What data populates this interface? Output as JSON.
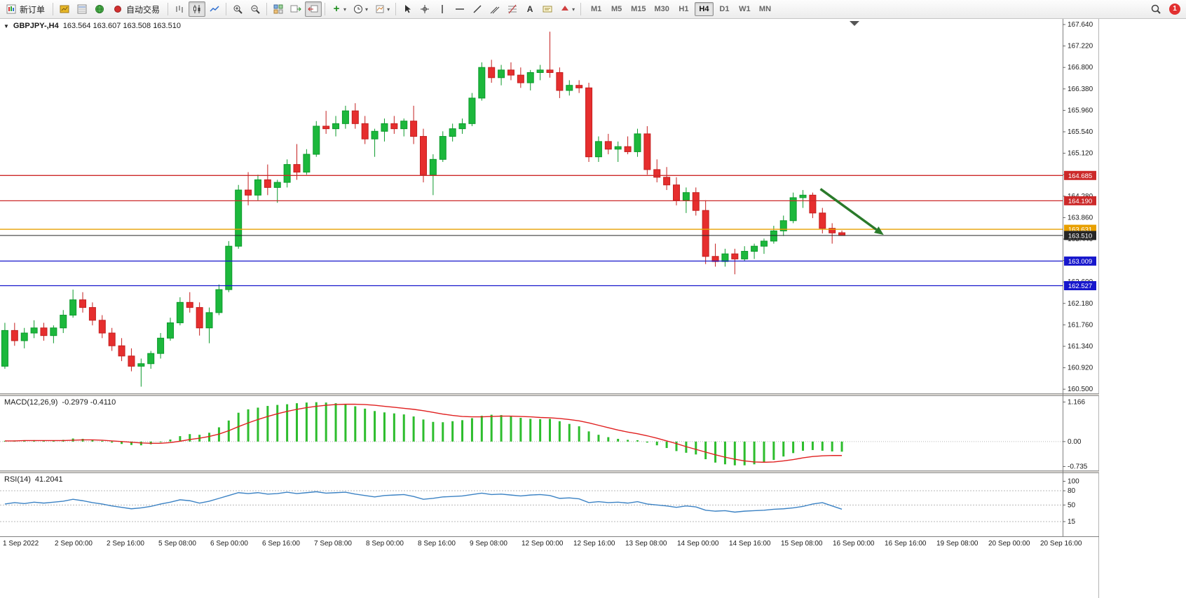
{
  "toolbar": {
    "new_order": {
      "label": "新订单"
    },
    "autotrade": {
      "label": "自动交易"
    },
    "timeframes": [
      {
        "label": "M1",
        "active": false
      },
      {
        "label": "M5",
        "active": false
      },
      {
        "label": "M15",
        "active": false
      },
      {
        "label": "M30",
        "active": false
      },
      {
        "label": "H1",
        "active": false
      },
      {
        "label": "H4",
        "active": true
      },
      {
        "label": "D1",
        "active": false
      },
      {
        "label": "W1",
        "active": false
      },
      {
        "label": "MN",
        "active": false
      }
    ],
    "notification_count": "1",
    "icon_names": [
      "new-order",
      "market-watch",
      "data-window",
      "navigator",
      "autotrade",
      "bars-chart",
      "candles-chart",
      "line-chart",
      "zoom-in",
      "zoom-out",
      "tile-windows",
      "auto-scroll",
      "chart-shift",
      "add-indicator",
      "periods",
      "templates",
      "cursor",
      "crosshair",
      "vertical-line",
      "horizontal-line",
      "trendline",
      "channel",
      "fibonacci",
      "text",
      "text-label",
      "arrows",
      "search"
    ]
  },
  "chart": {
    "symbol_period": "GBPJPY-,H4",
    "ohlc": "163.564 163.607 163.508 163.510"
  },
  "chart_data": {
    "type": "candlestick",
    "symbol": "GBPJPY-",
    "timeframe": "H4",
    "last_bar": {
      "open": 163.564,
      "high": 163.607,
      "low": 163.508,
      "close": 163.51
    },
    "y_axis": {
      "min": 160.42,
      "max": 167.75,
      "tick_start": 160.5,
      "tick_step": 0.42,
      "tick_count": 18
    },
    "x_labels": [
      "1 Sep 2022",
      "2 Sep 00:00",
      "2 Sep 16:00",
      "5 Sep 08:00",
      "6 Sep 00:00",
      "6 Sep 16:00",
      "7 Sep 08:00",
      "8 Sep 00:00",
      "8 Sep 16:00",
      "9 Sep 08:00",
      "12 Sep 00:00",
      "12 Sep 16:00",
      "13 Sep 08:00",
      "14 Sep 00:00",
      "14 Sep 16:00",
      "15 Sep 08:00",
      "16 Sep 00:00",
      "16 Sep 16:00",
      "19 Sep 08:00",
      "20 Sep 00:00",
      "20 Sep 16:00"
    ],
    "levels": [
      {
        "price": 164.685,
        "label": "164.685",
        "color": "#cc2929",
        "type": "resistance"
      },
      {
        "price": 164.19,
        "label": "164.190",
        "color": "#cc2929",
        "type": "resistance"
      },
      {
        "price": 163.631,
        "label": "163.631",
        "color": "#e8a000",
        "type": "pivot"
      },
      {
        "price": 163.51,
        "label": "163.510",
        "color": "#262626",
        "type": "current-price"
      },
      {
        "price": 163.009,
        "label": "163.009",
        "color": "#1717cc",
        "type": "support"
      },
      {
        "price": 162.527,
        "label": "162.527",
        "color": "#1717cc",
        "type": "support"
      }
    ],
    "trend_arrow": {
      "bar_from": 84.3,
      "price_from": 164.42,
      "bar_to": 90.8,
      "price_to": 163.52,
      "color": "#2a7a2a"
    },
    "candles": [
      [
        160.95,
        161.8,
        160.9,
        161.65
      ],
      [
        161.65,
        161.8,
        161.35,
        161.45
      ],
      [
        161.45,
        161.7,
        161.3,
        161.6
      ],
      [
        161.6,
        161.85,
        161.5,
        161.7
      ],
      [
        161.7,
        161.8,
        161.45,
        161.55
      ],
      [
        161.55,
        161.75,
        161.4,
        161.7
      ],
      [
        161.7,
        162.05,
        161.6,
        161.95
      ],
      [
        161.95,
        162.45,
        161.9,
        162.25
      ],
      [
        162.25,
        162.4,
        162.0,
        162.1
      ],
      [
        162.1,
        162.2,
        161.75,
        161.85
      ],
      [
        161.85,
        161.95,
        161.5,
        161.6
      ],
      [
        161.6,
        161.7,
        161.25,
        161.35
      ],
      [
        161.35,
        161.5,
        161.05,
        161.15
      ],
      [
        161.15,
        161.3,
        160.85,
        160.95
      ],
      [
        160.95,
        161.1,
        160.55,
        161.0
      ],
      [
        161.0,
        161.25,
        160.9,
        161.2
      ],
      [
        161.2,
        161.6,
        161.1,
        161.5
      ],
      [
        161.5,
        161.9,
        161.45,
        161.8
      ],
      [
        161.8,
        162.3,
        161.75,
        162.2
      ],
      [
        162.2,
        162.4,
        162.0,
        162.1
      ],
      [
        162.1,
        162.2,
        161.55,
        161.7
      ],
      [
        161.7,
        162.1,
        161.4,
        162.0
      ],
      [
        162.0,
        162.55,
        161.95,
        162.45
      ],
      [
        162.45,
        163.4,
        162.4,
        163.3
      ],
      [
        163.3,
        164.5,
        163.25,
        164.4
      ],
      [
        164.4,
        164.75,
        164.1,
        164.3
      ],
      [
        164.3,
        164.7,
        164.2,
        164.6
      ],
      [
        164.6,
        164.9,
        164.3,
        164.45
      ],
      [
        164.45,
        164.6,
        164.15,
        164.55
      ],
      [
        164.55,
        165.0,
        164.45,
        164.9
      ],
      [
        164.9,
        165.3,
        164.6,
        164.75
      ],
      [
        164.75,
        165.2,
        164.7,
        165.1
      ],
      [
        165.1,
        165.75,
        165.05,
        165.65
      ],
      [
        165.65,
        165.95,
        165.5,
        165.6
      ],
      [
        165.6,
        165.85,
        165.45,
        165.7
      ],
      [
        165.7,
        166.05,
        165.6,
        165.95
      ],
      [
        165.95,
        166.1,
        165.6,
        165.7
      ],
      [
        165.7,
        165.85,
        165.3,
        165.4
      ],
      [
        165.4,
        165.6,
        165.05,
        165.55
      ],
      [
        165.55,
        165.8,
        165.35,
        165.7
      ],
      [
        165.7,
        165.85,
        165.5,
        165.6
      ],
      [
        165.6,
        165.8,
        165.45,
        165.75
      ],
      [
        165.75,
        166.05,
        165.3,
        165.45
      ],
      [
        165.45,
        165.6,
        164.55,
        164.7
      ],
      [
        164.7,
        165.1,
        164.3,
        165.0
      ],
      [
        165.0,
        165.55,
        164.95,
        165.45
      ],
      [
        165.45,
        165.7,
        165.35,
        165.6
      ],
      [
        165.6,
        165.8,
        165.5,
        165.7
      ],
      [
        165.7,
        166.3,
        165.65,
        166.2
      ],
      [
        166.2,
        166.9,
        166.15,
        166.8
      ],
      [
        166.8,
        166.95,
        166.5,
        166.6
      ],
      [
        166.6,
        166.85,
        166.45,
        166.75
      ],
      [
        166.75,
        166.9,
        166.55,
        166.65
      ],
      [
        166.65,
        166.8,
        166.4,
        166.5
      ],
      [
        166.5,
        166.75,
        166.35,
        166.7
      ],
      [
        166.7,
        166.85,
        166.55,
        166.75
      ],
      [
        166.75,
        167.5,
        166.6,
        166.7
      ],
      [
        166.7,
        166.8,
        166.2,
        166.35
      ],
      [
        166.35,
        166.55,
        166.25,
        166.45
      ],
      [
        166.45,
        166.55,
        166.3,
        166.4
      ],
      [
        166.4,
        166.5,
        164.95,
        165.05
      ],
      [
        165.05,
        165.45,
        164.95,
        165.35
      ],
      [
        165.35,
        165.5,
        165.1,
        165.2
      ],
      [
        165.2,
        165.35,
        164.95,
        165.25
      ],
      [
        165.25,
        165.45,
        165.1,
        165.15
      ],
      [
        165.15,
        165.6,
        165.05,
        165.5
      ],
      [
        165.5,
        165.65,
        164.7,
        164.8
      ],
      [
        164.8,
        165.0,
        164.55,
        164.65
      ],
      [
        164.65,
        164.85,
        164.4,
        164.5
      ],
      [
        164.5,
        164.65,
        164.1,
        164.2
      ],
      [
        164.2,
        164.45,
        163.95,
        164.35
      ],
      [
        164.35,
        164.45,
        163.9,
        164.0
      ],
      [
        164.0,
        164.2,
        162.95,
        163.1
      ],
      [
        163.1,
        163.35,
        162.9,
        163.0
      ],
      [
        163.0,
        163.25,
        162.9,
        163.15
      ],
      [
        163.15,
        163.25,
        162.75,
        163.05
      ],
      [
        163.05,
        163.3,
        163.0,
        163.2
      ],
      [
        163.2,
        163.35,
        163.05,
        163.3
      ],
      [
        163.3,
        163.45,
        163.15,
        163.4
      ],
      [
        163.4,
        163.7,
        163.35,
        163.6
      ],
      [
        163.6,
        163.9,
        163.5,
        163.8
      ],
      [
        163.8,
        164.35,
        163.75,
        164.25
      ],
      [
        164.25,
        164.4,
        164.05,
        164.3
      ],
      [
        164.3,
        164.35,
        163.85,
        163.95
      ],
      [
        163.95,
        164.05,
        163.55,
        163.65
      ],
      [
        163.65,
        163.75,
        163.35,
        163.56
      ],
      [
        163.564,
        163.607,
        163.508,
        163.51
      ]
    ],
    "macd": {
      "label": "MACD(12,26,9)",
      "values_text": "-0.2979 -0.4110",
      "main_value": -0.2979,
      "signal_value": -0.411,
      "scale_labels": [
        "1.166",
        "0.00",
        "-0.735"
      ],
      "scale_values": [
        1.166,
        0,
        -0.735
      ],
      "ylim": [
        -0.85,
        1.34
      ],
      "histogram": [
        0.02,
        0.03,
        0.02,
        0.04,
        0.03,
        0.02,
        0.05,
        0.09,
        0.08,
        0.05,
        0.02,
        -0.03,
        -0.07,
        -0.1,
        -0.11,
        -0.08,
        -0.02,
        0.06,
        0.16,
        0.22,
        0.2,
        0.26,
        0.42,
        0.62,
        0.85,
        0.95,
        1.0,
        1.05,
        1.08,
        1.1,
        1.13,
        1.15,
        1.16,
        1.15,
        1.13,
        1.1,
        1.04,
        0.97,
        0.9,
        0.86,
        0.83,
        0.8,
        0.74,
        0.65,
        0.58,
        0.57,
        0.6,
        0.63,
        0.69,
        0.76,
        0.79,
        0.78,
        0.74,
        0.7,
        0.67,
        0.66,
        0.67,
        0.6,
        0.52,
        0.45,
        0.3,
        0.2,
        0.13,
        0.08,
        0.05,
        0.04,
        -0.03,
        -0.11,
        -0.19,
        -0.28,
        -0.33,
        -0.38,
        -0.52,
        -0.62,
        -0.67,
        -0.7,
        -0.7,
        -0.67,
        -0.61,
        -0.54,
        -0.44,
        -0.34,
        -0.27,
        -0.25,
        -0.27,
        -0.29,
        -0.2979
      ],
      "signal": [
        0.02,
        0.02,
        0.03,
        0.03,
        0.03,
        0.03,
        0.03,
        0.04,
        0.05,
        0.05,
        0.04,
        0.02,
        0.0,
        -0.02,
        -0.04,
        -0.05,
        -0.05,
        -0.03,
        0.01,
        0.06,
        0.1,
        0.15,
        0.22,
        0.32,
        0.44,
        0.55,
        0.65,
        0.74,
        0.82,
        0.89,
        0.95,
        1.0,
        1.04,
        1.07,
        1.09,
        1.1,
        1.1,
        1.09,
        1.07,
        1.04,
        1.01,
        0.98,
        0.95,
        0.91,
        0.86,
        0.81,
        0.77,
        0.74,
        0.73,
        0.73,
        0.74,
        0.75,
        0.75,
        0.74,
        0.73,
        0.71,
        0.7,
        0.68,
        0.65,
        0.61,
        0.55,
        0.48,
        0.41,
        0.34,
        0.28,
        0.23,
        0.17,
        0.1,
        0.02,
        -0.06,
        -0.15,
        -0.23,
        -0.31,
        -0.39,
        -0.46,
        -0.52,
        -0.57,
        -0.6,
        -0.61,
        -0.6,
        -0.57,
        -0.53,
        -0.48,
        -0.44,
        -0.42,
        -0.41,
        -0.411
      ]
    },
    "rsi": {
      "label": "RSI(14)",
      "value_text": "41.2041",
      "value": 41.2041,
      "scale_labels": [
        "100",
        "80",
        "50",
        "15"
      ],
      "scale_values": [
        100,
        80,
        50,
        15
      ],
      "level_lines": [
        80,
        50,
        15
      ],
      "ylim": [
        -16,
        117
      ],
      "values": [
        52,
        55,
        53,
        56,
        54,
        56,
        58,
        62,
        59,
        55,
        52,
        48,
        45,
        42,
        44,
        47,
        52,
        56,
        61,
        59,
        54,
        58,
        64,
        70,
        76,
        74,
        76,
        73,
        74,
        77,
        74,
        76,
        78,
        75,
        76,
        77,
        73,
        70,
        67,
        70,
        71,
        72,
        68,
        62,
        64,
        67,
        68,
        69,
        72,
        75,
        72,
        73,
        71,
        69,
        71,
        72,
        70,
        64,
        65,
        63,
        55,
        57,
        55,
        56,
        54,
        57,
        52,
        50,
        48,
        45,
        48,
        46,
        39,
        37,
        38,
        35,
        37,
        38,
        39,
        41,
        42,
        44,
        47,
        52,
        55,
        48,
        41.2
      ]
    }
  }
}
